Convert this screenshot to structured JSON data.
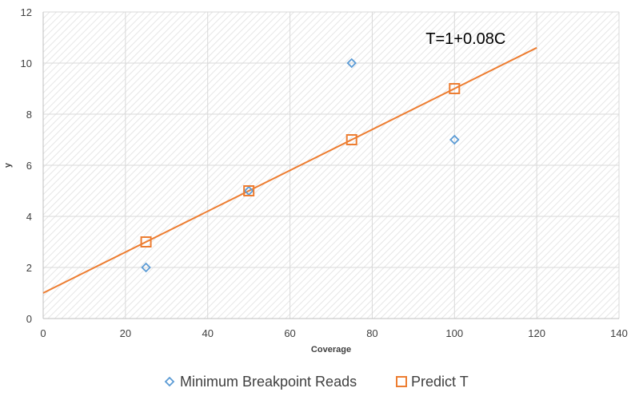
{
  "chart_data": {
    "type": "scatter",
    "title": "",
    "xlabel": "Coverage",
    "ylabel": "y",
    "xlim": [
      0,
      140
    ],
    "ylim": [
      0,
      12
    ],
    "xticks": [
      0,
      20,
      40,
      60,
      80,
      100,
      120,
      140
    ],
    "yticks": [
      0,
      2,
      4,
      6,
      8,
      10,
      12
    ],
    "grid": true,
    "legend_position": "bottom",
    "series": [
      {
        "name": "Minimum Breakpoint Reads",
        "marker": "diamond",
        "color": "#5b9bd5",
        "points": [
          {
            "x": 25,
            "y": 2
          },
          {
            "x": 50,
            "y": 5
          },
          {
            "x": 75,
            "y": 10
          },
          {
            "x": 100,
            "y": 7
          }
        ]
      },
      {
        "name": "Predict T",
        "marker": "square",
        "color": "#ed7d31",
        "points": [
          {
            "x": 25,
            "y": 3
          },
          {
            "x": 50,
            "y": 5
          },
          {
            "x": 75,
            "y": 7
          },
          {
            "x": 100,
            "y": 9
          }
        ]
      }
    ],
    "trendline": {
      "color": "#ed7d31",
      "intercept": 1,
      "slope": 0.08,
      "x_range": [
        0,
        120
      ]
    },
    "annotations": [
      {
        "text": "T=1+0.08C",
        "x": 93,
        "y": 10.75
      }
    ]
  }
}
